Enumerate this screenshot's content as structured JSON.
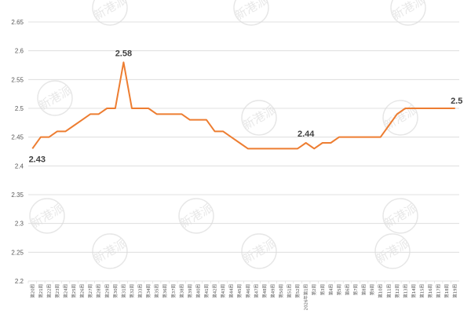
{
  "chart_data": {
    "type": "line",
    "title": "",
    "xlabel": "",
    "ylabel": "",
    "ylim": [
      2.2,
      2.65
    ],
    "yticks": [
      "2.2",
      "2.25",
      "2.3",
      "2.35",
      "2.4",
      "2.45",
      "2.5",
      "2.55",
      "2.6",
      "2.65"
    ],
    "grid": true,
    "legend": "none",
    "line_color": "#ED7D31",
    "categories": [
      "第20周",
      "第21周",
      "第22周",
      "第23周",
      "第24周",
      "第25周",
      "第26周",
      "第27周",
      "第28周",
      "第29周",
      "第30周",
      "第31周",
      "第32周",
      "第33周",
      "第34周",
      "第35周",
      "第36周",
      "第37周",
      "第38周",
      "第39周",
      "第40周",
      "第41周",
      "第42周",
      "第43周",
      "第44周",
      "第45周",
      "第46周",
      "第47周",
      "第48周",
      "第49周",
      "第50周",
      "第51周",
      "第52周",
      "2026年第1周",
      "第2周",
      "第3周",
      "第4周",
      "第5周",
      "第6周",
      "第7周",
      "第8周",
      "第9周",
      "第10周",
      "第11周",
      "第12周",
      "第13周",
      "第14周",
      "第15周",
      "第16周",
      "第17周",
      "第18周",
      "第19周"
    ],
    "series": [
      {
        "values": [
          2.43,
          2.45,
          2.45,
          2.46,
          2.46,
          2.47,
          2.48,
          2.49,
          2.49,
          2.5,
          2.5,
          2.58,
          2.5,
          2.5,
          2.5,
          2.49,
          2.49,
          2.49,
          2.49,
          2.48,
          2.48,
          2.48,
          2.46,
          2.46,
          2.45,
          2.44,
          2.43,
          2.43,
          2.43,
          2.43,
          2.43,
          2.43,
          2.43,
          2.44,
          2.43,
          2.44,
          2.44,
          2.45,
          2.45,
          2.45,
          2.45,
          2.45,
          2.45,
          2.47,
          2.49,
          2.5,
          2.5,
          2.5,
          2.5,
          2.5,
          2.5,
          2.5
        ]
      }
    ],
    "data_labels": [
      {
        "index": 0,
        "text": "2.43"
      },
      {
        "index": 11,
        "text": "2.58"
      },
      {
        "index": 33,
        "text": "2.44"
      },
      {
        "index": 51,
        "text": "2.5"
      }
    ],
    "watermark": "新港派"
  }
}
